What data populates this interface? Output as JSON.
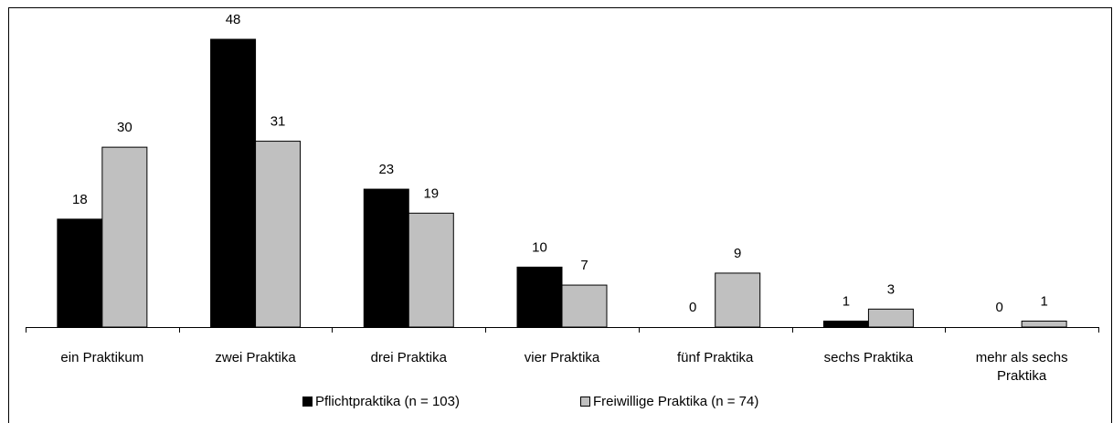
{
  "chart_data": {
    "type": "bar",
    "categories": [
      "ein Praktikum",
      "zwei Praktika",
      "drei Praktika",
      "vier Praktika",
      "fünf Praktika",
      "sechs Praktika",
      "mehr als sechs Praktika"
    ],
    "series": [
      {
        "name": "Pflichtpraktika (n = 103)",
        "color": "#000000",
        "values": [
          18,
          48,
          23,
          10,
          0,
          1,
          0
        ]
      },
      {
        "name": "Freiwillige Praktika (n = 74)",
        "color": "#c0c0c0",
        "values": [
          30,
          31,
          19,
          7,
          9,
          3,
          1
        ]
      }
    ],
    "legend": "bottom"
  }
}
